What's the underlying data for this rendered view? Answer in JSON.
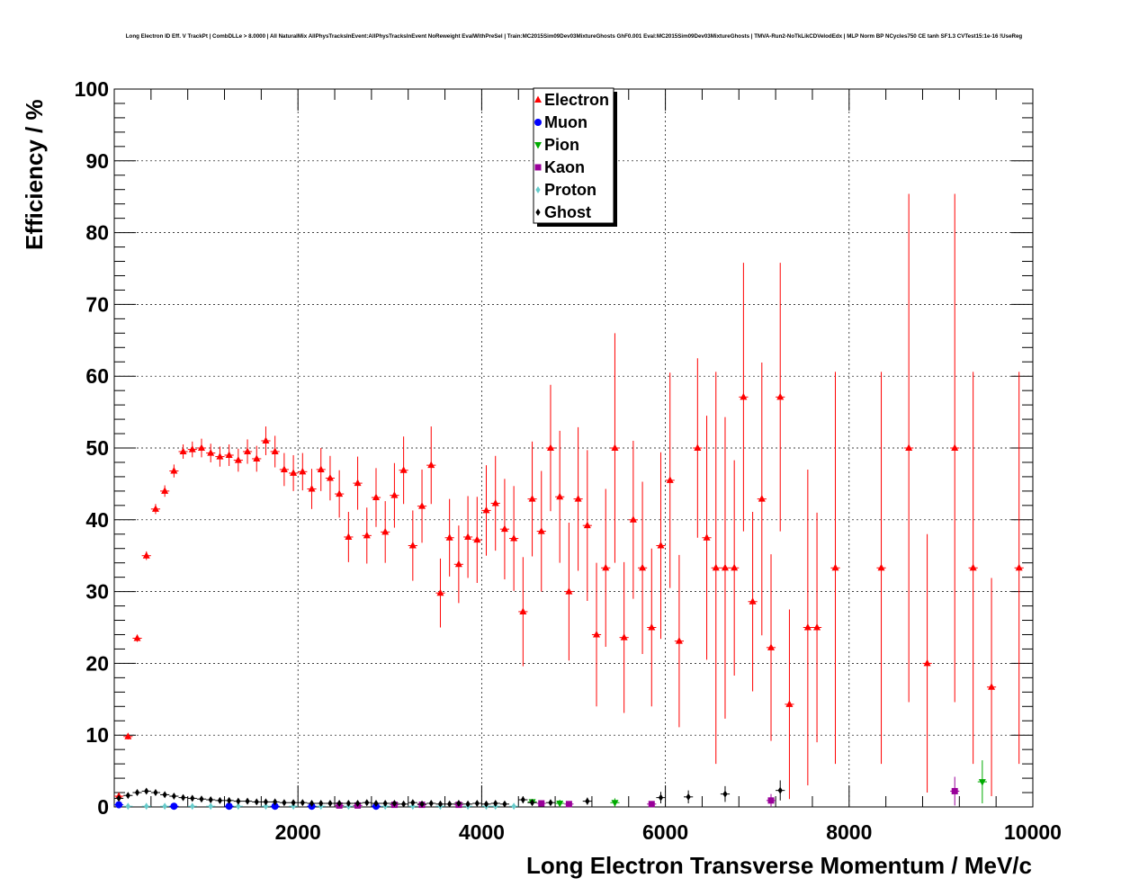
{
  "chart_data": {
    "type": "scatter",
    "title": "Long Electron ID Eff. V TrackPt | CombDLLe > 8.0000 | All NaturalMix AllPhysTracksInEvent:AllPhysTracksInEvent NoReweight EvalWithPreSel | Train:MC2015Sim09Dev03MixtureGhosts GhF0.001 Eval:MC2015Sim09Dev03MixtureGhosts | TMVA-Run2-NoTkLikCDVelodEdx | MLP Norm BP NCycles750 CE tanh SF1.3 CVTest15:1e-16 !UseReg",
    "xlabel": "Long Electron Transverse Momentum / MeV/c",
    "ylabel": "Efficiency / %",
    "xlim": [
      0,
      10000
    ],
    "ylim": [
      0,
      100
    ],
    "x_ticks": [
      2000,
      4000,
      6000,
      8000,
      10000
    ],
    "y_ticks": [
      0,
      10,
      20,
      30,
      40,
      50,
      60,
      70,
      80,
      90,
      100
    ],
    "grid": true,
    "legend_position": "top-center",
    "series": [
      {
        "name": "Electron",
        "color": "#ff0000",
        "marker": "triangle-up",
        "points": [
          [
            50,
            1.5,
            0.3
          ],
          [
            150,
            9.8,
            0.4
          ],
          [
            250,
            23.5,
            0.5
          ],
          [
            350,
            35,
            0.6
          ],
          [
            450,
            41.5,
            0.7
          ],
          [
            550,
            44,
            0.8
          ],
          [
            650,
            46.8,
            0.9
          ],
          [
            750,
            49.5,
            1.0
          ],
          [
            850,
            49.8,
            1.1
          ],
          [
            950,
            50,
            1.3
          ],
          [
            1050,
            49.3,
            1.3
          ],
          [
            1150,
            48.8,
            1.4
          ],
          [
            1250,
            49,
            1.5
          ],
          [
            1350,
            48.3,
            1.6
          ],
          [
            1450,
            49.5,
            1.7
          ],
          [
            1550,
            48.5,
            1.8
          ],
          [
            1650,
            51,
            2.0
          ],
          [
            1750,
            49.5,
            2.2
          ],
          [
            1850,
            47,
            2.3
          ],
          [
            1950,
            46.5,
            2.5
          ],
          [
            2050,
            46.7,
            2.6
          ],
          [
            2150,
            44.3,
            2.8
          ],
          [
            2250,
            47,
            3.0
          ],
          [
            2350,
            45.8,
            3.1
          ],
          [
            2450,
            43.6,
            3.3
          ],
          [
            2550,
            37.6,
            3.5
          ],
          [
            2650,
            45.1,
            3.7
          ],
          [
            2750,
            37.8,
            3.9
          ],
          [
            2850,
            43.1,
            4.1
          ],
          [
            2950,
            38.3,
            4.3
          ],
          [
            3050,
            43.4,
            4.5
          ],
          [
            3150,
            46.9,
            4.7
          ],
          [
            3250,
            36.4,
            4.9
          ],
          [
            3350,
            41.9,
            5.1
          ],
          [
            3450,
            47.6,
            5.4
          ],
          [
            3550,
            29.8,
            4.8
          ],
          [
            3650,
            37.5,
            5.4
          ],
          [
            3750,
            33.8,
            5.4
          ],
          [
            3850,
            37.6,
            5.7
          ],
          [
            3950,
            37.2,
            6.0
          ],
          [
            4050,
            41.3,
            6.3
          ],
          [
            4150,
            42.3,
            6.6
          ],
          [
            4250,
            38.7,
            7.0
          ],
          [
            4350,
            37.4,
            7.3
          ],
          [
            4450,
            27.2,
            7.6
          ],
          [
            4550,
            42.9,
            8.0
          ],
          [
            4650,
            38.4,
            8.4
          ],
          [
            4750,
            50,
            8.8
          ],
          [
            4850,
            43.2,
            9.2
          ],
          [
            4950,
            30,
            9.6
          ],
          [
            5050,
            42.9,
            10
          ],
          [
            5150,
            39.2,
            10.5
          ],
          [
            5250,
            24,
            10
          ],
          [
            5350,
            33.3,
            11
          ],
          [
            5450,
            50,
            16
          ],
          [
            5550,
            23.6,
            10.5
          ],
          [
            5650,
            40,
            11
          ],
          [
            5750,
            33.3,
            12
          ],
          [
            5850,
            25,
            11
          ],
          [
            5950,
            36.4,
            13
          ],
          [
            6050,
            45.5,
            15
          ],
          [
            6150,
            23.1,
            12
          ],
          [
            6350,
            50,
            12.5
          ],
          [
            6450,
            37.5,
            17
          ],
          [
            6550,
            33.3,
            27.3
          ],
          [
            6650,
            33.3,
            21
          ],
          [
            6750,
            33.3,
            15
          ],
          [
            6850,
            57.1,
            18.7
          ],
          [
            6950,
            28.6,
            12.5
          ],
          [
            7050,
            42.9,
            19
          ],
          [
            7150,
            22.2,
            13
          ],
          [
            7250,
            57.1,
            18.7
          ],
          [
            7350,
            14.3,
            13.2
          ],
          [
            7550,
            25,
            22
          ],
          [
            7650,
            25,
            16
          ],
          [
            7850,
            33.3,
            27.3
          ],
          [
            8350,
            33.3,
            27.3
          ],
          [
            8650,
            50,
            35.4
          ],
          [
            8850,
            20,
            18
          ],
          [
            9150,
            50,
            35.4
          ],
          [
            9350,
            33.3,
            27.3
          ],
          [
            9550,
            16.7,
            15.2
          ],
          [
            9850,
            33.3,
            27.3
          ]
        ]
      },
      {
        "name": "Muon",
        "color": "#0000ff",
        "marker": "circle",
        "points": [
          [
            50,
            0.3,
            0.2
          ],
          [
            650,
            0.1,
            0.1
          ],
          [
            1250,
            0.1,
            0.1
          ],
          [
            1750,
            0.1,
            0.1
          ],
          [
            2150,
            0.1,
            0.1
          ],
          [
            2850,
            0.1,
            0.1
          ]
        ]
      },
      {
        "name": "Pion",
        "color": "#00aa00",
        "marker": "triangle-down",
        "points": [
          [
            4550,
            0.7,
            0.4
          ],
          [
            4850,
            0.5,
            0.5
          ],
          [
            5450,
            0.6,
            0.6
          ],
          [
            9450,
            3.5,
            3.0
          ]
        ]
      },
      {
        "name": "Kaon",
        "color": "#990099",
        "marker": "square",
        "points": [
          [
            2450,
            0.2,
            0.2
          ],
          [
            2650,
            0.2,
            0.2
          ],
          [
            3050,
            0.3,
            0.2
          ],
          [
            3350,
            0.3,
            0.3
          ],
          [
            3750,
            0.3,
            0.3
          ],
          [
            4650,
            0.5,
            0.3
          ],
          [
            4950,
            0.4,
            0.4
          ],
          [
            5850,
            0.4,
            0.4
          ],
          [
            7150,
            0.9,
            0.9
          ],
          [
            9150,
            2.2,
            2.0
          ]
        ]
      },
      {
        "name": "Proton",
        "color": "#66cccc",
        "marker": "diamond",
        "points": [
          [
            150,
            0.1,
            0.1
          ],
          [
            350,
            0.1,
            0.1
          ],
          [
            550,
            0.1,
            0.1
          ],
          [
            850,
            0.1,
            0.1
          ],
          [
            1050,
            0.1,
            0.1
          ],
          [
            1350,
            0.1,
            0.1
          ],
          [
            1650,
            0.1,
            0.1
          ],
          [
            1950,
            0.1,
            0.1
          ],
          [
            2250,
            0.1,
            0.1
          ],
          [
            2550,
            0.1,
            0.1
          ],
          [
            2950,
            0.1,
            0.1
          ],
          [
            3250,
            0.1,
            0.1
          ],
          [
            3550,
            0.1,
            0.1
          ],
          [
            3850,
            0.1,
            0.1
          ],
          [
            4050,
            0.1,
            0.1
          ],
          [
            4150,
            0.1,
            0.1
          ],
          [
            4350,
            0.1,
            0.1
          ]
        ]
      },
      {
        "name": "Ghost",
        "color": "#000000",
        "marker": "diamond",
        "points": [
          [
            50,
            1.2,
            0.1
          ],
          [
            150,
            1.6,
            0.1
          ],
          [
            250,
            2.0,
            0.1
          ],
          [
            350,
            2.2,
            0.1
          ],
          [
            450,
            2.0,
            0.1
          ],
          [
            550,
            1.7,
            0.1
          ],
          [
            650,
            1.5,
            0.1
          ],
          [
            750,
            1.3,
            0.1
          ],
          [
            850,
            1.2,
            0.1
          ],
          [
            950,
            1.1,
            0.1
          ],
          [
            1050,
            1.0,
            0.1
          ],
          [
            1150,
            0.9,
            0.1
          ],
          [
            1250,
            0.9,
            0.1
          ],
          [
            1350,
            0.8,
            0.1
          ],
          [
            1450,
            0.8,
            0.1
          ],
          [
            1550,
            0.7,
            0.1
          ],
          [
            1650,
            0.7,
            0.1
          ],
          [
            1750,
            0.7,
            0.1
          ],
          [
            1850,
            0.6,
            0.1
          ],
          [
            1950,
            0.6,
            0.1
          ],
          [
            2050,
            0.6,
            0.1
          ],
          [
            2150,
            0.5,
            0.1
          ],
          [
            2250,
            0.5,
            0.1
          ],
          [
            2350,
            0.5,
            0.1
          ],
          [
            2450,
            0.5,
            0.2
          ],
          [
            2550,
            0.5,
            0.2
          ],
          [
            2650,
            0.5,
            0.2
          ],
          [
            2750,
            0.6,
            0.2
          ],
          [
            2850,
            0.5,
            0.2
          ],
          [
            2950,
            0.5,
            0.2
          ],
          [
            3050,
            0.5,
            0.2
          ],
          [
            3150,
            0.4,
            0.2
          ],
          [
            3250,
            0.6,
            0.3
          ],
          [
            3350,
            0.4,
            0.2
          ],
          [
            3450,
            0.5,
            0.2
          ],
          [
            3550,
            0.4,
            0.2
          ],
          [
            3650,
            0.4,
            0.3
          ],
          [
            3750,
            0.5,
            0.3
          ],
          [
            3850,
            0.4,
            0.3
          ],
          [
            3950,
            0.5,
            0.3
          ],
          [
            4050,
            0.4,
            0.3
          ],
          [
            4150,
            0.5,
            0.3
          ],
          [
            4250,
            0.4,
            0.3
          ],
          [
            4450,
            1.0,
            0.5
          ],
          [
            4550,
            0.6,
            0.4
          ],
          [
            4750,
            0.6,
            0.4
          ],
          [
            5150,
            0.8,
            0.5
          ],
          [
            5950,
            1.3,
            0.8
          ],
          [
            6250,
            1.4,
            0.9
          ],
          [
            6650,
            1.8,
            1.1
          ],
          [
            7250,
            2.3,
            1.4
          ]
        ]
      }
    ]
  }
}
